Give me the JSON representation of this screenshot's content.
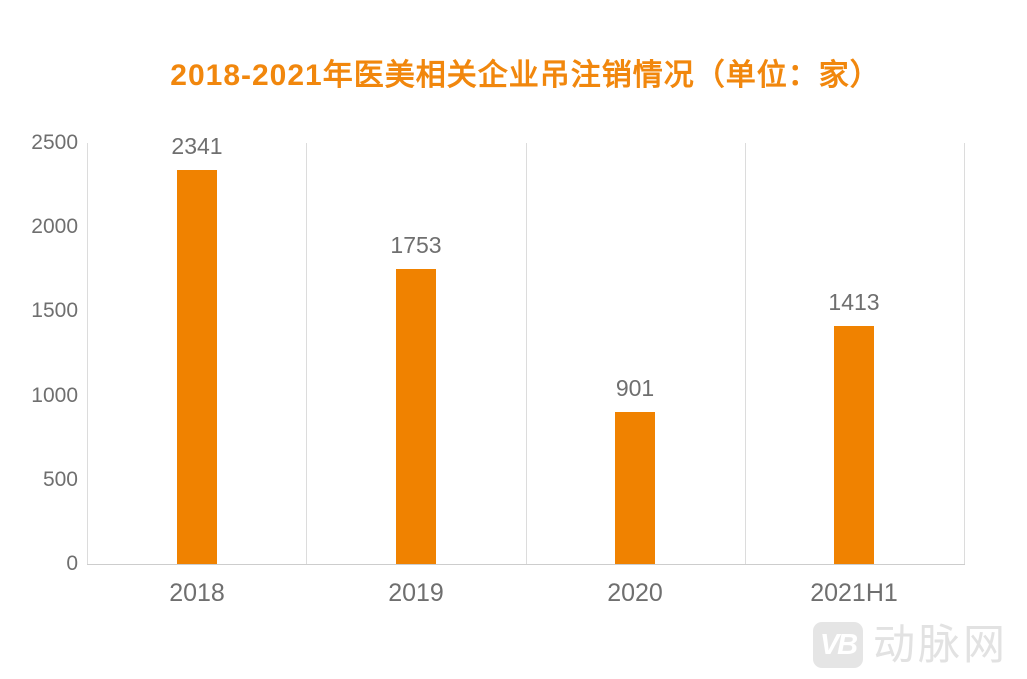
{
  "page": {
    "background": "#FFFFFF"
  },
  "chart_data": {
    "type": "bar",
    "title": "2018-2021年医美相关企业吊注销情况（单位：家）",
    "categories": [
      "2018",
      "2019",
      "2020",
      "2021H1"
    ],
    "values": [
      2341,
      1753,
      901,
      1413
    ],
    "data_labels": [
      "2341",
      "1753",
      "901",
      "1413"
    ],
    "xlabel": "",
    "ylabel": "",
    "ylim": [
      0,
      2500
    ],
    "y_ticks": [
      0,
      500,
      1000,
      1500,
      2000,
      2500
    ],
    "grid": "vertical category separator lines only, no horizontal gridlines",
    "legend": "none",
    "bar_color": "#F08200",
    "title_color": "#F1870D",
    "label_color": "#6F6F6F",
    "gridline_color": "#DCDCDC",
    "axis_line_color": "#CDCDCD"
  },
  "watermark": {
    "icon_label": "VB",
    "text": "动脉网",
    "icon_color": "#E5E5E5",
    "text_color": "#E2E2E2"
  }
}
